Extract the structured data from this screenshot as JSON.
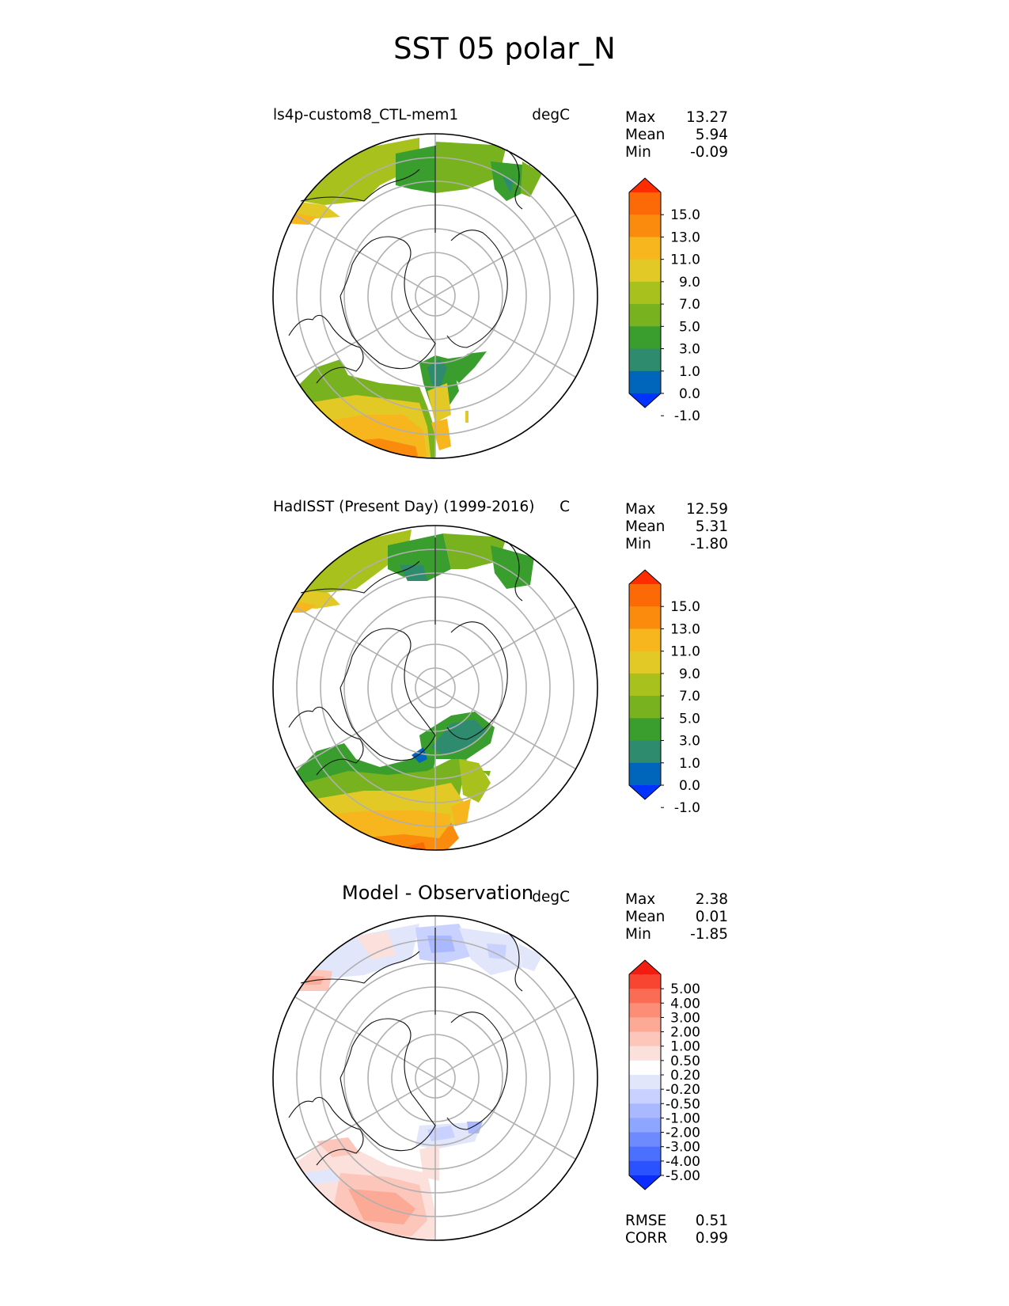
{
  "figure_title": "SST 05 polar_N",
  "colors": {
    "land_outline": "#111111",
    "grid": "#b0b0b0",
    "sst_levels": [
      "#0033ff",
      "#0066bb",
      "#2e8b6e",
      "#3a9e2e",
      "#78b21e",
      "#a9c11d",
      "#e3c926",
      "#f7b51e",
      "#fb8b0c",
      "#fb6a06",
      "#ff2c00"
    ],
    "diff_levels": [
      "#0a2cff",
      "#2b52ff",
      "#4b6fff",
      "#6d8bff",
      "#8da6ff",
      "#aab9ff",
      "#c9d2ff",
      "#e2e6fb",
      "#ffffff",
      "#fbe0dc",
      "#fcc6bb",
      "#fca996",
      "#fc8d77",
      "#fb6c54",
      "#f74532",
      "#f21d10"
    ]
  },
  "panels": [
    {
      "title": "ls4p-custom8_CTL-mem1",
      "units": "degC",
      "stats": [
        {
          "label": "Max",
          "value": "13.27"
        },
        {
          "label": "Mean",
          "value": "5.94"
        },
        {
          "label": "Min",
          "value": "-0.09"
        }
      ],
      "colorbar_ticks": [
        "15.0",
        "13.0",
        "11.0",
        "9.0",
        "7.0",
        "5.0",
        "3.0",
        "1.0",
        "0.0",
        "-1.0"
      ]
    },
    {
      "title": "HadISST (Present Day) (1999-2016)",
      "units": "C",
      "stats": [
        {
          "label": "Max",
          "value": "12.59"
        },
        {
          "label": "Mean",
          "value": "5.31"
        },
        {
          "label": "Min",
          "value": "-1.80"
        }
      ],
      "colorbar_ticks": [
        "15.0",
        "13.0",
        "11.0",
        "9.0",
        "7.0",
        "5.0",
        "3.0",
        "1.0",
        "0.0",
        "-1.0"
      ]
    },
    {
      "title": "Model - Observation",
      "units": "degC",
      "stats": [
        {
          "label": "Max",
          "value": "2.38"
        },
        {
          "label": "Mean",
          "value": "0.01"
        },
        {
          "label": "Min",
          "value": "-1.85"
        }
      ],
      "colorbar_ticks": [
        "5.00",
        "4.00",
        "3.00",
        "2.00",
        "1.00",
        "0.50",
        "0.20",
        "-0.20",
        "-0.50",
        "-1.00",
        "-2.00",
        "-3.00",
        "-4.00",
        "-5.00"
      ],
      "metrics": [
        {
          "label": "RMSE",
          "value": "0.51"
        },
        {
          "label": "CORR",
          "value": "0.99"
        }
      ]
    }
  ],
  "chart_data": [
    {
      "type": "heatmap",
      "title": "ls4p-custom8_CTL-mem1",
      "units": "degC",
      "projection": "north polar stereographic",
      "statistics": {
        "max": 13.27,
        "mean": 5.94,
        "min": -0.09
      },
      "colorbar_levels": [
        -1.0,
        0.0,
        1.0,
        3.0,
        5.0,
        7.0,
        9.0,
        11.0,
        13.0,
        15.0
      ],
      "colorbar_extend": "both"
    },
    {
      "type": "heatmap",
      "title": "HadISST (Present Day) (1999-2016)",
      "units": "C",
      "projection": "north polar stereographic",
      "statistics": {
        "max": 12.59,
        "mean": 5.31,
        "min": -1.8
      },
      "colorbar_levels": [
        -1.0,
        0.0,
        1.0,
        3.0,
        5.0,
        7.0,
        9.0,
        11.0,
        13.0,
        15.0
      ],
      "colorbar_extend": "both"
    },
    {
      "type": "heatmap",
      "title": "Model - Observation",
      "units": "degC",
      "projection": "north polar stereographic",
      "statistics": {
        "max": 2.38,
        "mean": 0.01,
        "min": -1.85,
        "rmse": 0.51,
        "corr": 0.99
      },
      "colorbar_levels": [
        -5.0,
        -4.0,
        -3.0,
        -2.0,
        -1.0,
        -0.5,
        -0.2,
        0.2,
        0.5,
        1.0,
        2.0,
        3.0,
        4.0,
        5.0
      ],
      "colorbar_extend": "both"
    }
  ]
}
